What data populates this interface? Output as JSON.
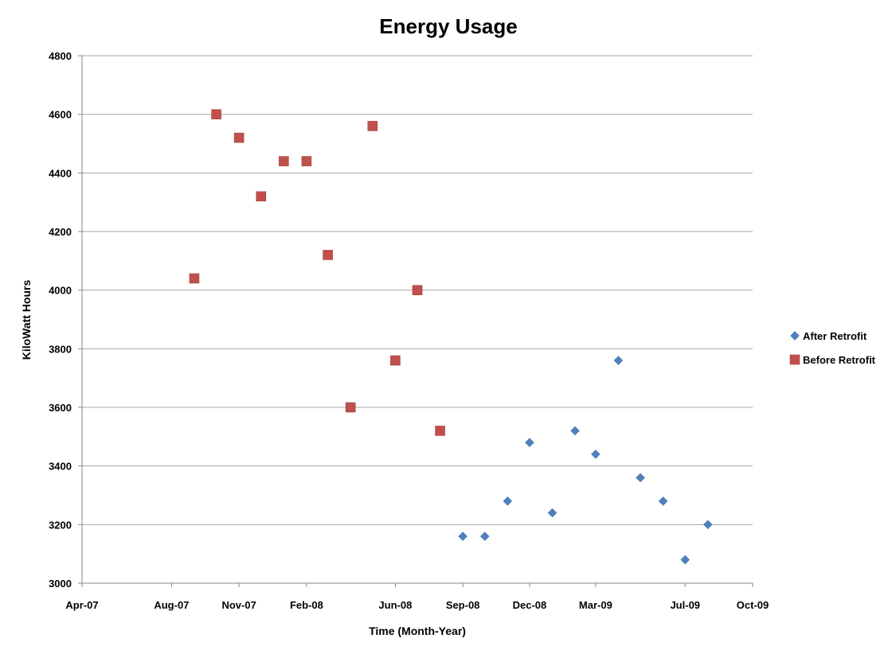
{
  "chart_data": {
    "type": "scatter",
    "title": "Energy Usage",
    "xlabel": "Time (Month-Year)",
    "ylabel": "KiloWatt Hours",
    "xlim": [
      "2007-04-01",
      "2009-10-01"
    ],
    "ylim": [
      3000,
      4800
    ],
    "yticks": [
      3000,
      3200,
      3400,
      3600,
      3800,
      4000,
      4200,
      4400,
      4600,
      4800
    ],
    "xticks": [
      {
        "date": "2007-04-01",
        "label": "Apr-07"
      },
      {
        "date": "2007-08-01",
        "label": "Aug-07"
      },
      {
        "date": "2007-11-01",
        "label": "Nov-07"
      },
      {
        "date": "2008-02-01",
        "label": "Feb-08"
      },
      {
        "date": "2008-06-01",
        "label": "Jun-08"
      },
      {
        "date": "2008-09-01",
        "label": "Sep-08"
      },
      {
        "date": "2008-12-01",
        "label": "Dec-08"
      },
      {
        "date": "2009-03-01",
        "label": "Mar-09"
      },
      {
        "date": "2009-07-01",
        "label": "Jul-09"
      },
      {
        "date": "2009-10-01",
        "label": "Oct-09"
      }
    ],
    "grid": "horizontal",
    "legend_position": "right",
    "series": [
      {
        "name": "After Retrofit",
        "marker": "diamond",
        "color": "#4F81BD",
        "points": [
          {
            "x": "2008-09-01",
            "y": 3160
          },
          {
            "x": "2008-10-01",
            "y": 3160
          },
          {
            "x": "2008-11-01",
            "y": 3280
          },
          {
            "x": "2008-12-01",
            "y": 3480
          },
          {
            "x": "2009-01-01",
            "y": 3240
          },
          {
            "x": "2009-02-01",
            "y": 3520
          },
          {
            "x": "2009-03-01",
            "y": 3440
          },
          {
            "x": "2009-04-01",
            "y": 3760
          },
          {
            "x": "2009-05-01",
            "y": 3360
          },
          {
            "x": "2009-06-01",
            "y": 3280
          },
          {
            "x": "2009-07-01",
            "y": 3080
          },
          {
            "x": "2009-08-01",
            "y": 3200
          }
        ]
      },
      {
        "name": "Before Retrofit",
        "marker": "square",
        "color": "#C0504D",
        "points": [
          {
            "x": "2007-09-01",
            "y": 4040
          },
          {
            "x": "2007-10-01",
            "y": 4600
          },
          {
            "x": "2007-11-01",
            "y": 4520
          },
          {
            "x": "2007-12-01",
            "y": 4320
          },
          {
            "x": "2008-01-01",
            "y": 4440
          },
          {
            "x": "2008-02-01",
            "y": 4440
          },
          {
            "x": "2008-03-01",
            "y": 4120
          },
          {
            "x": "2008-04-01",
            "y": 3600
          },
          {
            "x": "2008-05-01",
            "y": 4560
          },
          {
            "x": "2008-06-01",
            "y": 3760
          },
          {
            "x": "2008-07-01",
            "y": 4000
          },
          {
            "x": "2008-08-01",
            "y": 3520
          }
        ]
      }
    ]
  }
}
